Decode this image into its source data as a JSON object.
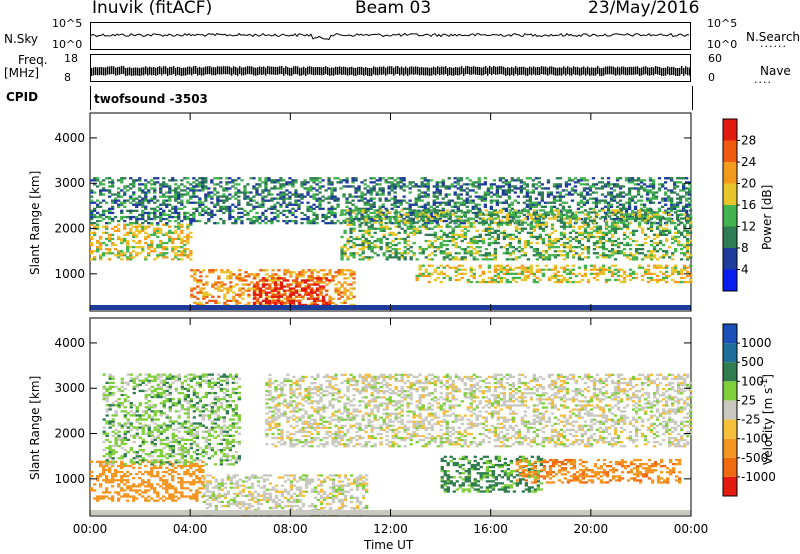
{
  "header": {
    "station": "Inuvik (fitACF)",
    "beam": "Beam 03",
    "date": "23/May/2016"
  },
  "strip_panels": {
    "nsky_label": "N.Sky",
    "nsky_ticks": [
      "10^5",
      "10^0"
    ],
    "nsearch_label": "N.Search",
    "nsearch_ticks": [
      "10^5",
      "10^0"
    ],
    "freq_label": "Freq.",
    "freq_unit": "[MHz]",
    "freq_ticks": [
      "18",
      "8"
    ],
    "nave_label": "Nave",
    "nave_ticks": [
      "60",
      "0"
    ],
    "cpid_label": "CPID",
    "cpid_value": "twofsound -3503",
    "legend_dots": "......",
    "legend_dots2": "...."
  },
  "chart_data": [
    {
      "type": "heatmap",
      "title": "",
      "xlabel": "",
      "ylabel": "Slant Range [km]",
      "x_ticks": [
        "00:00",
        "04:00",
        "08:00",
        "12:00",
        "16:00",
        "20:00",
        "00:00"
      ],
      "xlim_hours": [
        0,
        24
      ],
      "y_ticks": [
        1000,
        2000,
        3000,
        4000
      ],
      "ylim": [
        180,
        4550
      ],
      "colorbar": {
        "label": "Power [dB]",
        "ticks": [
          4,
          8,
          12,
          16,
          20,
          24,
          28
        ],
        "colors": [
          "#0a1df0",
          "#1e3c9b",
          "#2e7d52",
          "#43b34f",
          "#e8c52a",
          "#f39b1c",
          "#f05a10",
          "#e31a0e"
        ]
      },
      "features": [
        {
          "from_h": 0.0,
          "to_h": 4.0,
          "range_km": [
            1300,
            2100
          ],
          "power_db": 18
        },
        {
          "from_h": 0.0,
          "to_h": 24.0,
          "range_km": [
            2100,
            3100
          ],
          "power_db": 10
        },
        {
          "from_h": 4.0,
          "to_h": 10.5,
          "range_km": [
            250,
            1100
          ],
          "power_db": 22
        },
        {
          "from_h": 6.5,
          "to_h": 9.5,
          "range_km": [
            250,
            900
          ],
          "power_db": 30
        },
        {
          "from_h": 10.0,
          "to_h": 24.0,
          "range_km": [
            1300,
            2400
          ],
          "power_db": 14
        },
        {
          "from_h": 13.0,
          "to_h": 24.0,
          "range_km": [
            800,
            1200
          ],
          "power_db": 18
        }
      ]
    },
    {
      "type": "heatmap",
      "title": "",
      "xlabel": "Time UT",
      "ylabel": "Slant Range [km]",
      "x_ticks": [
        "00:00",
        "04:00",
        "08:00",
        "12:00",
        "16:00",
        "20:00",
        "00:00"
      ],
      "xlim_hours": [
        0,
        24
      ],
      "y_ticks": [
        1000,
        2000,
        3000,
        4000
      ],
      "ylim": [
        180,
        4550
      ],
      "colorbar": {
        "label": "Velocity [m s",
        "label_exp": "-1",
        "label_end": "]",
        "ticks": [
          "1000",
          "500",
          "100",
          "25",
          "-25",
          "-100",
          "-500",
          "-1000"
        ],
        "colors": [
          "#1d4fb8",
          "#1f6f9a",
          "#2f7d4e",
          "#7fcf3a",
          "#c9c9c1",
          "#f5bf3a",
          "#f39621",
          "#f06a12",
          "#e31b0e"
        ]
      },
      "features": [
        {
          "from_h": 0.0,
          "to_h": 4.5,
          "range_km": [
            500,
            1400
          ],
          "velocity": -300
        },
        {
          "from_h": 0.5,
          "to_h": 6.0,
          "range_km": [
            1300,
            3300
          ],
          "velocity": 60
        },
        {
          "from_h": 4.5,
          "to_h": 11.0,
          "range_km": [
            200,
            1100
          ],
          "velocity": 0
        },
        {
          "from_h": 7.0,
          "to_h": 24.0,
          "range_km": [
            1700,
            3300
          ],
          "velocity": 0
        },
        {
          "from_h": 14.0,
          "to_h": 18.0,
          "range_km": [
            700,
            1500
          ],
          "velocity": 150
        },
        {
          "from_h": 17.0,
          "to_h": 23.5,
          "range_km": [
            900,
            1400
          ],
          "velocity": -400
        }
      ]
    }
  ]
}
